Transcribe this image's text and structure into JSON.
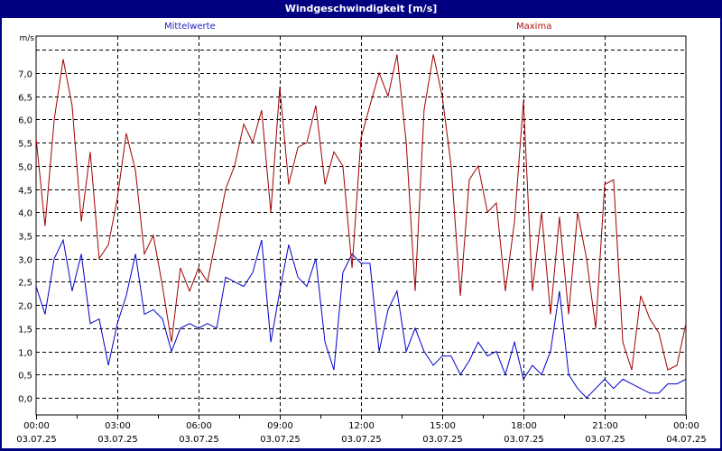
{
  "window": {
    "title": "Windgeschwindigkeit [m/s]"
  },
  "legend": {
    "mean_label": "Mittelwerte",
    "max_label": "Maxima",
    "mean_color": "#0000cc",
    "max_color": "#a00000"
  },
  "chart_data": {
    "type": "line",
    "title": "Windgeschwindigkeit [m/s]",
    "ylabel": "m/s",
    "xlabel": "",
    "ylim": [
      -0.35,
      7.75
    ],
    "yticks": [
      "0,0",
      "0,5",
      "1,0",
      "1,5",
      "2,0",
      "2,5",
      "3,0",
      "3,5",
      "4,0",
      "4,5",
      "5,0",
      "5,5",
      "6,0",
      "6,5",
      "7,0"
    ],
    "xticks": [
      {
        "time": "00:00",
        "date": "03.07.25"
      },
      {
        "time": "03:00",
        "date": "03.07.25"
      },
      {
        "time": "06:00",
        "date": "03.07.25"
      },
      {
        "time": "09:00",
        "date": "03.07.25"
      },
      {
        "time": "12:00",
        "date": "03.07.25"
      },
      {
        "time": "15:00",
        "date": "03.07.25"
      },
      {
        "time": "18:00",
        "date": "03.07.25"
      },
      {
        "time": "21:00",
        "date": "03.07.25"
      },
      {
        "time": "00:00",
        "date": "04.07.25"
      }
    ],
    "grid": true,
    "legend_position": "top",
    "x_hours": [
      0,
      0.33,
      0.67,
      1,
      1.33,
      1.67,
      2,
      2.33,
      2.67,
      3,
      3.33,
      3.67,
      4,
      4.33,
      4.67,
      5,
      5.33,
      5.67,
      6,
      6.33,
      6.67,
      7,
      7.33,
      7.67,
      8,
      8.33,
      8.67,
      9,
      9.33,
      9.67,
      10,
      10.33,
      10.67,
      11,
      11.33,
      11.67,
      12,
      12.33,
      12.67,
      13,
      13.33,
      13.67,
      14,
      14.33,
      14.67,
      15,
      15.33,
      15.67,
      16,
      16.33,
      16.67,
      17,
      17.33,
      17.67,
      18,
      18.33,
      18.67,
      19,
      19.33,
      19.67,
      20,
      20.33,
      20.67,
      21,
      21.33,
      21.67,
      22,
      22.33,
      22.67,
      23,
      23.33,
      23.67,
      24
    ],
    "series": [
      {
        "name": "Mittelwerte",
        "color": "#0000cc",
        "values": [
          2.4,
          1.8,
          3.0,
          3.4,
          2.3,
          3.1,
          1.6,
          1.7,
          0.7,
          1.6,
          2.2,
          3.1,
          1.8,
          1.9,
          1.7,
          1.0,
          1.5,
          1.6,
          1.5,
          1.6,
          1.5,
          2.6,
          2.5,
          2.4,
          2.7,
          3.4,
          1.2,
          2.3,
          3.3,
          2.6,
          2.4,
          3.0,
          1.2,
          0.6,
          2.7,
          3.1,
          2.9,
          2.9,
          1.0,
          1.9,
          2.3,
          1.0,
          1.5,
          1.0,
          0.7,
          0.9,
          0.9,
          0.5,
          0.8,
          1.2,
          0.9,
          1.0,
          0.5,
          1.2,
          0.4,
          0.7,
          0.5,
          1.0,
          2.3,
          0.5,
          0.2,
          0.0,
          0.2,
          0.4,
          0.2,
          0.4,
          0.3,
          0.2,
          0.1,
          0.1,
          0.3,
          0.3,
          0.4
        ]
      },
      {
        "name": "Maxima",
        "color": "#a00000",
        "values": [
          5.6,
          3.7,
          6.0,
          7.3,
          6.3,
          3.8,
          5.3,
          3.0,
          3.3,
          4.3,
          5.7,
          4.9,
          3.1,
          3.5,
          2.4,
          1.2,
          2.8,
          2.3,
          2.8,
          2.5,
          3.5,
          4.5,
          5.0,
          5.9,
          5.5,
          6.2,
          4.0,
          6.7,
          4.6,
          5.4,
          5.5,
          6.3,
          4.6,
          5.3,
          5.0,
          2.8,
          5.6,
          6.3,
          7.0,
          6.5,
          7.4,
          5.5,
          2.3,
          6.2,
          7.4,
          6.5,
          5.0,
          2.2,
          4.7,
          5.0,
          4.0,
          4.2,
          2.3,
          3.8,
          6.4,
          2.3,
          4.0,
          1.8,
          3.9,
          1.8,
          4.0,
          3.0,
          1.5,
          4.6,
          4.7,
          1.2,
          0.6,
          2.2,
          1.7,
          1.4,
          0.6,
          0.7,
          1.6
        ]
      }
    ]
  }
}
